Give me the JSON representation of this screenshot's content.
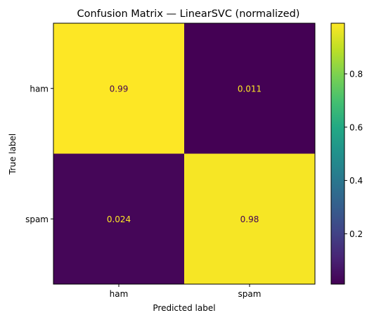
{
  "chart_data": {
    "type": "heatmap",
    "title": "Confusion Matrix — LinearSVC (normalized)",
    "xlabel": "Predicted label",
    "ylabel": "True label",
    "row_labels": [
      "ham",
      "spam"
    ],
    "col_labels": [
      "ham",
      "spam"
    ],
    "values": [
      [
        0.99,
        0.011
      ],
      [
        0.024,
        0.98
      ]
    ],
    "value_labels": [
      [
        "0.99",
        "0.011"
      ],
      [
        "0.024",
        "0.98"
      ]
    ],
    "colormap": "viridis",
    "colorbar": {
      "vmin": 0.011,
      "vmax": 0.99,
      "ticks": [
        0.2,
        0.4,
        0.6,
        0.8
      ],
      "tick_labels": [
        "0.2",
        "0.4",
        "0.6",
        "0.8"
      ]
    },
    "grid": false
  }
}
